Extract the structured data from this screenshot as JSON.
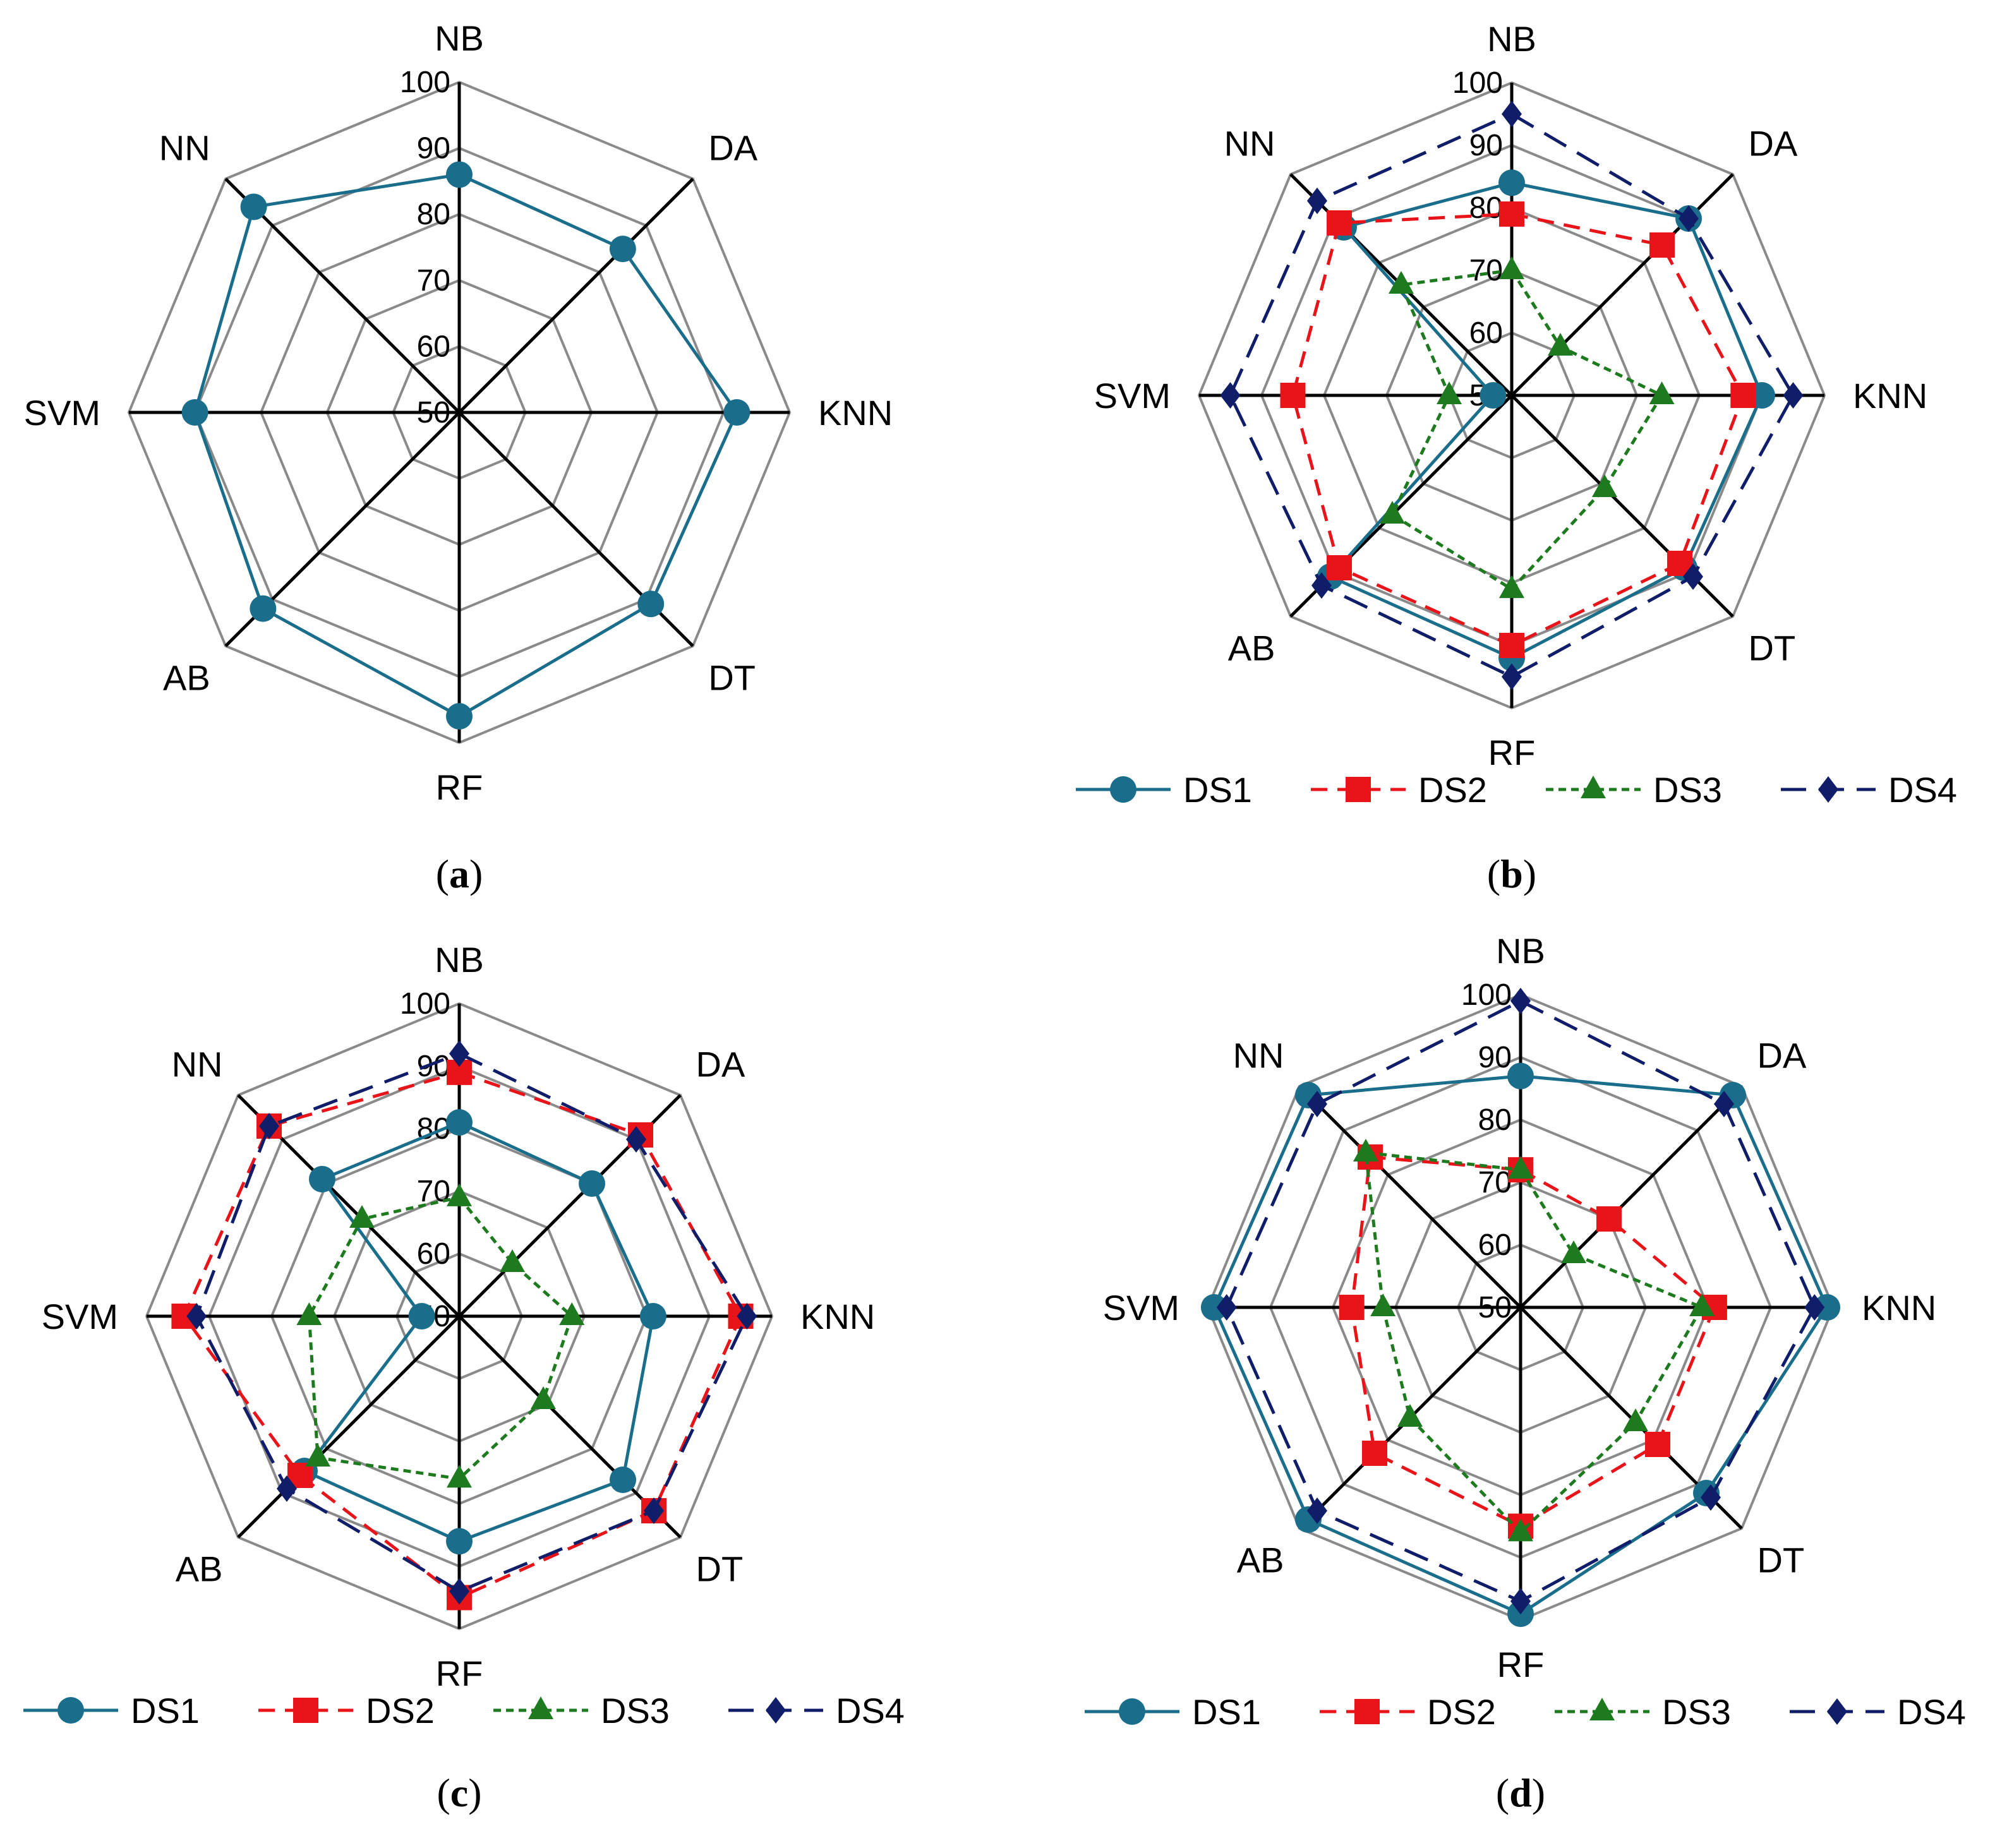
{
  "colors": {
    "DS1": "#1a6e8c",
    "DS2": "#e8141a",
    "DS3": "#1e7a1e",
    "DS4": "#101e6a",
    "grid": "#8a8a8a",
    "spoke": "#000000"
  },
  "chart_data": [
    {
      "panel": "a",
      "caption_open": "(",
      "caption_letter": "a",
      "caption_close": ")",
      "type": "radar",
      "categories": [
        "NB",
        "DA",
        "KNN",
        "DT",
        "RF",
        "AB",
        "SVM",
        "NN"
      ],
      "ticks": [
        "50",
        "60",
        "70",
        "80",
        "90",
        "100"
      ],
      "rlim": [
        50,
        100
      ],
      "grid": true,
      "legend": false,
      "series": [
        {
          "key": "DS1",
          "values": [
            86,
            85,
            92,
            91,
            96,
            92,
            90,
            94
          ],
          "marker": "circle",
          "dash": "solid"
        }
      ]
    },
    {
      "panel": "b",
      "caption_open": "(",
      "caption_letter": "b",
      "caption_close": ")",
      "type": "radar",
      "categories": [
        "NB",
        "DA",
        "KNN",
        "DT",
        "RF",
        "AB",
        "SVM",
        "NN"
      ],
      "ticks": [
        "50",
        "60",
        "70",
        "80",
        "90",
        "100"
      ],
      "rlim": [
        50,
        100
      ],
      "grid": true,
      "legend": true,
      "legend_position": "bottom",
      "series": [
        {
          "name": "DS1",
          "key": "DS1",
          "values": [
            84,
            90,
            90,
            89,
            92,
            91,
            53,
            88
          ],
          "marker": "circle",
          "dash": "solid"
        },
        {
          "name": "DS2",
          "key": "DS2",
          "values": [
            79,
            84,
            87,
            88,
            90,
            89,
            85,
            89
          ],
          "marker": "square",
          "dash": "dashed"
        },
        {
          "name": "DS3",
          "key": "DS3",
          "values": [
            70,
            61,
            74,
            71,
            81,
            77,
            60,
            75
          ],
          "marker": "triangle",
          "dash": "dotted"
        },
        {
          "name": "DS4",
          "key": "DS4",
          "values": [
            95,
            90,
            95,
            91,
            95,
            93,
            95,
            94
          ],
          "marker": "diamond",
          "dash": "longdash"
        }
      ]
    },
    {
      "panel": "c",
      "caption_open": "(",
      "caption_letter": "c",
      "caption_close": ")",
      "type": "radar",
      "categories": [
        "NB",
        "DA",
        "KNN",
        "DT",
        "RF",
        "AB",
        "SVM",
        "NN"
      ],
      "ticks": [
        "50",
        "60",
        "70",
        "80",
        "90",
        "100"
      ],
      "rlim": [
        50,
        100
      ],
      "grid": true,
      "legend": true,
      "legend_position": "bottom",
      "series": [
        {
          "name": "DS1",
          "key": "DS1",
          "values": [
            81,
            80,
            81,
            87,
            86,
            85,
            56,
            81
          ],
          "marker": "circle",
          "dash": "solid"
        },
        {
          "name": "DS2",
          "key": "DS2",
          "values": [
            89,
            91,
            95,
            94,
            95,
            86,
            94,
            93
          ],
          "marker": "square",
          "dash": "dashed"
        },
        {
          "name": "DS3",
          "key": "DS3",
          "values": [
            69,
            62,
            68,
            69,
            76,
            82,
            74,
            72
          ],
          "marker": "triangle",
          "dash": "dotted"
        },
        {
          "name": "DS4",
          "key": "DS4",
          "values": [
            92,
            90,
            96,
            94,
            94,
            89,
            92,
            93
          ],
          "marker": "diamond",
          "dash": "longdash"
        }
      ]
    },
    {
      "panel": "d",
      "caption_open": "(",
      "caption_letter": "d",
      "caption_close": ")",
      "type": "radar",
      "categories": [
        "NB",
        "DA",
        "KNN",
        "DT",
        "RF",
        "AB",
        "SVM",
        "NN"
      ],
      "ticks": [
        "50",
        "60",
        "70",
        "80",
        "90",
        "100"
      ],
      "rlim": [
        50,
        100
      ],
      "grid": true,
      "legend": true,
      "legend_position": "bottom",
      "series": [
        {
          "name": "DS1",
          "key": "DS1",
          "values": [
            87,
            98,
            99,
            92,
            99,
            98,
            99,
            98
          ],
          "marker": "circle",
          "dash": "solid"
        },
        {
          "name": "DS2",
          "key": "DS2",
          "values": [
            72,
            70,
            81,
            81,
            85,
            83,
            77,
            84
          ],
          "marker": "square",
          "dash": "dashed"
        },
        {
          "name": "DS3",
          "key": "DS3",
          "values": [
            72,
            62,
            79,
            76,
            86,
            75,
            72,
            85
          ],
          "marker": "triangle",
          "dash": "dotted"
        },
        {
          "name": "DS4",
          "key": "DS4",
          "values": [
            99,
            96,
            97,
            93,
            97,
            96,
            97,
            96
          ],
          "marker": "diamond",
          "dash": "longdash"
        }
      ]
    }
  ]
}
